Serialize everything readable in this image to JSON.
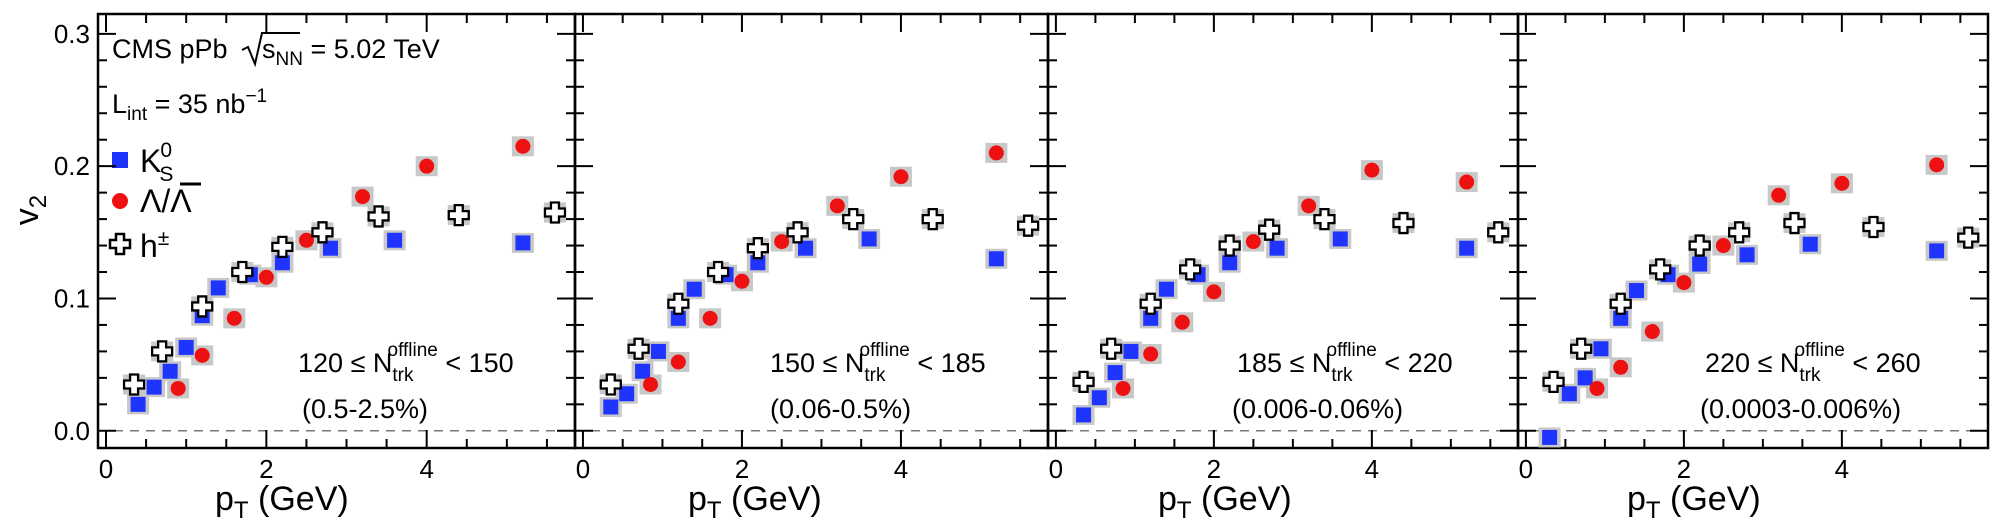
{
  "chart_data": {
    "type": "scatter",
    "y_label": "v",
    "y_label_sub": "2",
    "x_label_main": "p",
    "x_label_sub": "T",
    "x_label_unit": " (GeV)",
    "x_ticks": [
      0,
      2,
      4
    ],
    "y_ticks": [
      "0.0",
      "0.1",
      "0.2",
      "0.3"
    ],
    "xlim": [
      -0.1,
      5.85
    ],
    "ylim": [
      -0.013,
      0.315
    ],
    "legend": {
      "placement": "top-left",
      "line1": "CMS pPb ",
      "sqrt_var": "s",
      "sqrt_sub": "NN",
      "energy": " = 5.02 TeV",
      "lumi_L": "L",
      "lumi_sub": "int",
      "lumi_val": " = 35 nb",
      "lumi_sup": "−1",
      "kshort_main": "K",
      "kshort_sub": "S",
      "kshort_sup": "0",
      "lambda_main": "Λ/",
      "lambda_bar": "Λ",
      "hadron_main": "h",
      "hadron_sup": "±"
    },
    "series_styles": {
      "kshort_color": "#1f35ff",
      "lambda_color": "#ee1111",
      "hadron_fill": "#ffffff",
      "syst_box_color": "#c8c8c8",
      "zero_line_color": "#777777"
    },
    "panels": [
      {
        "mult_low": "120",
        "mult_high": "150",
        "centrality": "(0.5-2.5%)",
        "kshort": {
          "x": [
            0.4,
            0.6,
            0.8,
            1.0,
            1.2,
            1.4,
            1.8,
            2.2,
            2.8,
            3.6,
            5.2
          ],
          "y": [
            0.02,
            0.033,
            0.045,
            0.063,
            0.087,
            0.108,
            0.118,
            0.127,
            0.138,
            0.144,
            0.142
          ]
        },
        "lambda": {
          "x": [
            0.9,
            1.2,
            1.6,
            2.0,
            2.5,
            3.2,
            4.0,
            5.2
          ],
          "y": [
            0.032,
            0.057,
            0.085,
            0.116,
            0.144,
            0.177,
            0.2,
            0.215
          ]
        },
        "hadron": {
          "x": [
            0.35,
            0.7,
            1.2,
            1.7,
            2.2,
            2.7,
            3.4,
            4.4,
            5.6
          ],
          "y": [
            0.035,
            0.06,
            0.094,
            0.12,
            0.139,
            0.15,
            0.162,
            0.163,
            0.165
          ]
        }
      },
      {
        "mult_low": "150",
        "mult_high": "185",
        "centrality": "(0.06-0.5%)",
        "kshort": {
          "x": [
            0.35,
            0.55,
            0.75,
            0.95,
            1.2,
            1.4,
            1.8,
            2.2,
            2.8,
            3.6,
            5.2
          ],
          "y": [
            0.018,
            0.028,
            0.045,
            0.06,
            0.085,
            0.107,
            0.118,
            0.127,
            0.138,
            0.145,
            0.13
          ]
        },
        "lambda": {
          "x": [
            0.85,
            1.2,
            1.6,
            2.0,
            2.5,
            3.2,
            4.0,
            5.2
          ],
          "y": [
            0.035,
            0.052,
            0.085,
            0.113,
            0.143,
            0.17,
            0.192,
            0.21
          ]
        },
        "hadron": {
          "x": [
            0.35,
            0.7,
            1.2,
            1.7,
            2.2,
            2.7,
            3.4,
            4.4,
            5.6
          ],
          "y": [
            0.035,
            0.062,
            0.096,
            0.12,
            0.138,
            0.15,
            0.16,
            0.16,
            0.155
          ]
        }
      },
      {
        "mult_low": "185",
        "mult_high": "220",
        "centrality": "(0.006-0.06%)",
        "kshort": {
          "x": [
            0.35,
            0.55,
            0.75,
            0.95,
            1.2,
            1.4,
            1.8,
            2.2,
            2.8,
            3.6,
            5.2
          ],
          "y": [
            0.012,
            0.025,
            0.044,
            0.06,
            0.085,
            0.107,
            0.118,
            0.127,
            0.138,
            0.145,
            0.138
          ]
        },
        "lambda": {
          "x": [
            0.85,
            1.2,
            1.6,
            2.0,
            2.5,
            3.2,
            4.0,
            5.2
          ],
          "y": [
            0.032,
            0.058,
            0.082,
            0.105,
            0.143,
            0.17,
            0.197,
            0.188
          ]
        },
        "hadron": {
          "x": [
            0.35,
            0.7,
            1.2,
            1.7,
            2.2,
            2.7,
            3.4,
            4.4,
            5.6
          ],
          "y": [
            0.037,
            0.062,
            0.096,
            0.122,
            0.14,
            0.152,
            0.16,
            0.157,
            0.15
          ]
        }
      },
      {
        "mult_low": "220",
        "mult_high": "260",
        "centrality": "(0.0003-0.006%)",
        "kshort": {
          "x": [
            0.3,
            0.55,
            0.75,
            0.95,
            1.2,
            1.4,
            1.8,
            2.2,
            2.8,
            3.6,
            5.2
          ],
          "y": [
            -0.005,
            0.028,
            0.04,
            0.062,
            0.085,
            0.106,
            0.118,
            0.126,
            0.133,
            0.141,
            0.136
          ]
        },
        "lambda": {
          "x": [
            0.9,
            1.2,
            1.6,
            2.0,
            2.5,
            3.2,
            4.0,
            5.2
          ],
          "y": [
            0.032,
            0.048,
            0.075,
            0.112,
            0.14,
            0.178,
            0.187,
            0.201
          ]
        },
        "hadron": {
          "x": [
            0.35,
            0.7,
            1.2,
            1.7,
            2.2,
            2.7,
            3.4,
            4.4,
            5.6
          ],
          "y": [
            0.037,
            0.062,
            0.096,
            0.122,
            0.14,
            0.15,
            0.157,
            0.154,
            0.146
          ]
        }
      }
    ]
  }
}
